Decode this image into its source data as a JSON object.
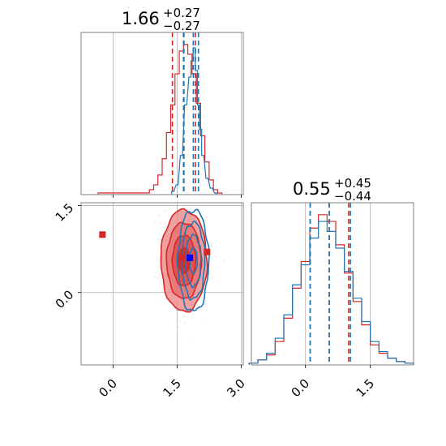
{
  "colors": {
    "red": "#d62728",
    "blue": "#1f77b4",
    "grid": "#b0b0b0",
    "frame": "#808080",
    "fill_red": "#ee8f8f"
  },
  "chart_data": [
    {
      "type": "histogram",
      "panel": "top-left",
      "title": {
        "main": "1.66",
        "sup": "+0.27",
        "sub": "−0.27"
      },
      "xlim": [
        -0.75,
        3.05
      ],
      "xticks": [
        0.0,
        1.5,
        3.0
      ],
      "xtick_labels_shown": false,
      "grid": true,
      "series": [
        {
          "name": "",
          "color": "#d62728",
          "x": [
            -0.3,
            0.8,
            0.9,
            1.0,
            1.1,
            1.2,
            1.3,
            1.4,
            1.5,
            1.6,
            1.7,
            1.8,
            1.9,
            2.0,
            2.1,
            2.2,
            2.3,
            2.4,
            2.5
          ],
          "values": [
            0.01,
            0.01,
            0.03,
            0.06,
            0.12,
            0.22,
            0.38,
            0.55,
            0.74,
            0.88,
            0.92,
            0.86,
            0.74,
            0.56,
            0.36,
            0.2,
            0.09,
            0.03,
            0.01
          ],
          "quantiles": [
            1.39,
            1.66,
            1.93
          ]
        },
        {
          "name": "",
          "color": "#1f77b4",
          "x": [
            1.4,
            1.5,
            1.6,
            1.7,
            1.8,
            1.85,
            1.9,
            1.95,
            2.0,
            2.05,
            2.1,
            2.2,
            2.3,
            2.4
          ],
          "values": [
            0.02,
            0.06,
            0.24,
            0.55,
            0.72,
            0.82,
            0.9,
            0.76,
            0.55,
            0.4,
            0.24,
            0.1,
            0.04,
            0.01
          ],
          "quantiles": [
            1.65,
            1.88,
            2.0
          ]
        }
      ]
    },
    {
      "type": "contour",
      "panel": "bottom-left",
      "xlim": [
        -0.75,
        3.05
      ],
      "ylim": [
        -1.25,
        1.55
      ],
      "xticks": [
        0.0,
        1.5,
        3.0
      ],
      "xtick_labels": [
        "0.0",
        "1.5",
        "3.0"
      ],
      "yticks": [
        0.0,
        1.5
      ],
      "ytick_labels": [
        "0.0",
        "1.5"
      ],
      "grid": true,
      "series": [
        {
          "name": "",
          "color": "#d62728",
          "center": [
            1.66,
            0.55
          ],
          "sigma": [
            0.27,
            0.44
          ]
        },
        {
          "name": "",
          "color": "#1f77b4",
          "center": [
            1.88,
            0.55
          ],
          "sigma": [
            0.18,
            0.44
          ]
        }
      ],
      "markers": [
        {
          "x": -0.25,
          "y": 1.0,
          "color": "#d62728"
        },
        {
          "x": 1.6,
          "y": 0.6,
          "color": "#d62728"
        },
        {
          "x": 2.2,
          "y": 0.7,
          "color": "#d62728"
        },
        {
          "x": 1.8,
          "y": 0.6,
          "color": "#0000ff"
        }
      ]
    },
    {
      "type": "histogram",
      "panel": "bottom-right",
      "title": {
        "main": "0.55",
        "sup": "+0.45",
        "sub": "−0.44"
      },
      "xlim": [
        -1.25,
        2.5
      ],
      "xticks": [
        0.0,
        1.5
      ],
      "xtick_labels": [
        "0.0",
        "1.5"
      ],
      "grid": true,
      "series": [
        {
          "name": "",
          "color": "#d62728",
          "x": [
            -1.2,
            -1.0,
            -0.8,
            -0.6,
            -0.4,
            -0.2,
            0.0,
            0.2,
            0.4,
            0.6,
            0.8,
            1.0,
            1.2,
            1.4,
            1.6,
            1.8,
            2.0,
            2.2,
            2.4
          ],
          "values": [
            0.01,
            0.03,
            0.06,
            0.14,
            0.28,
            0.46,
            0.62,
            0.82,
            0.9,
            0.86,
            0.72,
            0.55,
            0.38,
            0.24,
            0.12,
            0.07,
            0.04,
            0.02,
            0.01
          ],
          "quantiles": [
            0.11,
            0.55,
            1.0
          ]
        },
        {
          "name": "",
          "color": "#1f77b4",
          "x": [
            -1.2,
            -1.0,
            -0.8,
            -0.6,
            -0.4,
            -0.2,
            0.0,
            0.2,
            0.4,
            0.6,
            0.8,
            1.0,
            1.2,
            1.4,
            1.6,
            1.8,
            2.0,
            2.2,
            2.4
          ],
          "values": [
            0.01,
            0.03,
            0.07,
            0.16,
            0.3,
            0.48,
            0.6,
            0.76,
            0.86,
            0.8,
            0.7,
            0.56,
            0.4,
            0.26,
            0.14,
            0.08,
            0.04,
            0.02,
            0.01
          ],
          "quantiles": [
            0.11,
            0.55,
            1.04
          ]
        }
      ]
    }
  ]
}
